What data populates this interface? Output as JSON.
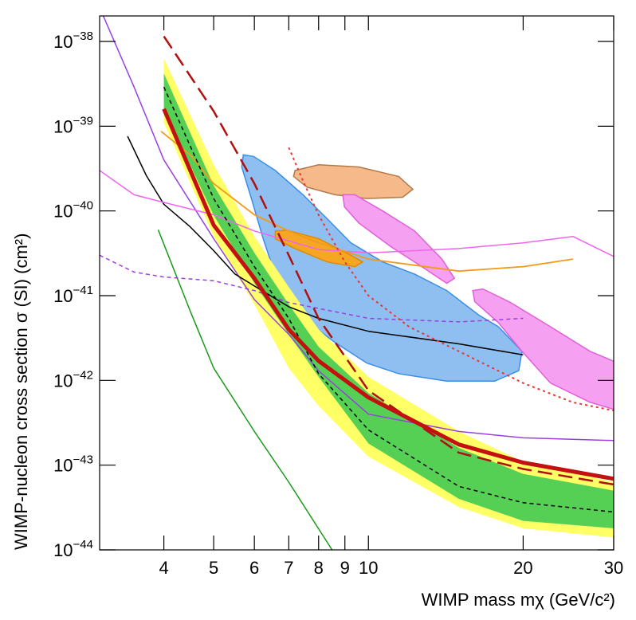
{
  "chart_data": {
    "type": "line",
    "x_label": "WIMP mass mχ (GeV/c²)",
    "y_label": "WIMP-nucleon cross section σ (SI) (cm²)",
    "log_x": true,
    "log_y": true,
    "xlim": [
      3,
      30
    ],
    "ylim": [
      1e-44,
      2e-38
    ],
    "xticks": [
      4,
      5,
      6,
      7,
      8,
      9,
      10,
      20,
      30
    ],
    "yticks": [
      {
        "value": 1e-44,
        "label": "10−44"
      },
      {
        "value": 1e-43,
        "label": "10−43"
      },
      {
        "value": 1e-42,
        "label": "10−42"
      },
      {
        "value": 1e-41,
        "label": "10−41"
      },
      {
        "value": 1e-40,
        "label": "10−40"
      },
      {
        "value": 1e-39,
        "label": "10−39"
      },
      {
        "value": 1e-38,
        "label": "10−38"
      }
    ],
    "regions": [
      {
        "color": "#8fbff0",
        "edge": "#3a8ee6",
        "x": [
          5.71,
          5.98,
          6.59,
          7.46,
          8.31,
          9.24,
          10.66,
          12.3,
          14.2,
          16.4,
          17.9,
          19.9,
          19.6,
          17.6,
          14.2,
          11.45,
          9.93,
          8.61,
          7.46,
          6.71,
          6.24,
          5.92,
          5.67
        ],
        "values": [
          4.6e-40,
          4.4e-40,
          3e-40,
          1.55e-40,
          8.1e-41,
          4.2e-41,
          2.5e-41,
          1.8e-41,
          1.15e-41,
          5.9e-42,
          4.3e-42,
          2.2e-42,
          1.3e-42,
          9.8e-43,
          9.8e-43,
          1.2e-42,
          1.6e-42,
          2.8e-42,
          5.4e-42,
          1.26e-41,
          4.7e-41,
          1.4e-40,
          3.3e-40
        ]
      },
      {
        "color": "#f5b98a",
        "edge": "#b07a4a",
        "x": [
          7.2,
          8.0,
          9.58,
          11.45,
          12.2,
          11.66,
          9.93,
          8.61,
          7.6,
          7.15
        ],
        "values": [
          3e-40,
          3.5e-40,
          3.3e-40,
          2.55e-40,
          1.8e-40,
          1.45e-40,
          1.4e-40,
          1.55e-40,
          1.9e-40,
          2.55e-40
        ]
      },
      {
        "color": "#f5a623",
        "edge": "#e08a00",
        "x": [
          6.59,
          6.95,
          8.0,
          9.24,
          9.75,
          9.41,
          8.31,
          7.2,
          6.59
        ],
        "values": [
          5.8e-41,
          5.9e-41,
          4.7e-41,
          3e-41,
          2.5e-41,
          2.2e-41,
          2.5e-41,
          3.6e-41,
          4.7e-41
        ]
      },
      {
        "color": "#f5a0f0",
        "edge": "#e060d8",
        "x": [
          8.92,
          9.41,
          10.66,
          12.3,
          13.9,
          14.7,
          14.2,
          12.7,
          11.05,
          9.58,
          8.98
        ],
        "values": [
          1.55e-40,
          1.55e-40,
          1e-40,
          5.8e-41,
          2.7e-41,
          1.6e-41,
          1.4e-41,
          2.2e-41,
          3.8e-41,
          7.2e-41,
          1.12e-40
        ]
      },
      {
        "color": "#f5a0f0",
        "edge": "#e060d8",
        "x": [
          15.96,
          16.7,
          18.9,
          22.6,
          27,
          30.6,
          30.6,
          27,
          22.6,
          19.9,
          17.9,
          16.1
        ],
        "values": [
          1.15e-41,
          1.2e-41,
          8.3e-42,
          4.3e-42,
          2.2e-42,
          1.6e-42,
          4.4e-43,
          5.5e-43,
          9.3e-43,
          2.2e-42,
          4.8e-42,
          8.5e-42
        ]
      }
    ],
    "bands": [
      {
        "color": "#ffff66",
        "x": [
          4,
          5,
          6,
          7,
          8,
          10,
          15,
          20,
          30
        ],
        "upper": [
          6.3e-39,
          3.5e-40,
          5e-41,
          1.26e-41,
          4e-42,
          1.1e-42,
          2.5e-43,
          1.1e-43,
          6.3e-44
        ],
        "lower": [
          1.1e-39,
          5e-41,
          7.9e-42,
          1.4e-42,
          5e-43,
          1.26e-43,
          3.2e-44,
          1.8e-44,
          1.4e-44
        ]
      },
      {
        "color": "#55d055",
        "x": [
          4,
          5,
          6,
          7,
          8,
          10,
          15,
          20,
          30
        ],
        "upper": [
          4.2e-39,
          2e-40,
          3.2e-41,
          7.9e-42,
          2.5e-42,
          7.1e-43,
          1.6e-43,
          7.9e-44,
          5e-44
        ],
        "lower": [
          1.6e-39,
          8.9e-41,
          1.4e-41,
          3.5e-42,
          1.1e-42,
          1.8e-43,
          4e-44,
          2.2e-44,
          1.8e-44
        ]
      }
    ],
    "series": [
      {
        "color": "#1a9a1a",
        "dash": "solid",
        "width": 1.5,
        "x": [
          3.9,
          4.5,
          5,
          6,
          7,
          8.5
        ],
        "values": [
          6e-41,
          6.6e-42,
          1.4e-42,
          2.5e-43,
          6.3e-44,
          1e-44
        ]
      },
      {
        "color": "#9a40e0",
        "dash": "solid",
        "width": 1.5,
        "x": [
          3.05,
          3.5,
          4,
          5,
          6,
          7,
          8,
          10,
          15,
          20,
          30
        ],
        "values": [
          2e-38,
          2.9e-39,
          4e-40,
          4.7e-41,
          9e-42,
          3.5e-42,
          1.3e-42,
          4e-43,
          2.5e-43,
          2.1e-43,
          1.95e-43
        ]
      },
      {
        "color": "#9a40e0",
        "dash": "dashed",
        "width": 1.5,
        "x": [
          3,
          3.5,
          4,
          5,
          6,
          7,
          10,
          15,
          20
        ],
        "values": [
          3e-41,
          1.9e-41,
          1.66e-41,
          1.5e-41,
          1.15e-41,
          8.3e-42,
          5.4e-42,
          4.9e-42,
          5.4e-42
        ]
      },
      {
        "color": "#000000",
        "dash": "solid",
        "width": 1.5,
        "x": [
          3.4,
          3.7,
          4,
          4.5,
          5,
          5.5,
          6,
          7,
          8,
          10,
          15,
          20
        ],
        "values": [
          7.6e-40,
          2.6e-40,
          1.2e-40,
          6.5e-41,
          3.4e-41,
          1.8e-41,
          1.3e-41,
          7.4e-42,
          5.4e-42,
          3.8e-42,
          2.7e-42,
          2e-42
        ]
      },
      {
        "color": "#ee66ee",
        "dash": "solid",
        "width": 1.5,
        "x": [
          3,
          3.5,
          4,
          5,
          6,
          8,
          10,
          15,
          20,
          25,
          30
        ],
        "values": [
          3e-40,
          1.55e-40,
          1.26e-40,
          9e-41,
          5.8e-41,
          3.5e-41,
          3.2e-41,
          3.6e-41,
          4.2e-41,
          5e-41,
          2.9e-41
        ]
      },
      {
        "color": "#f39a1e",
        "dash": "solid",
        "width": 1.8,
        "x": [
          3.95,
          4.5,
          5,
          6,
          7,
          8,
          10,
          15,
          20,
          25
        ],
        "values": [
          8.7e-40,
          4.6e-40,
          2.1e-40,
          9e-41,
          5.8e-41,
          4.2e-41,
          2.7e-41,
          1.95e-41,
          2.2e-41,
          2.7e-41
        ]
      },
      {
        "color": "#ee3333",
        "dash": "dotted",
        "width": 2,
        "x": [
          7,
          7.5,
          8,
          9,
          10,
          12,
          15,
          20,
          25,
          30
        ],
        "values": [
          5.6e-40,
          2.1e-40,
          9e-41,
          2.5e-41,
          1e-41,
          4.3e-42,
          2.2e-42,
          9.3e-43,
          5.5e-43,
          4.4e-43
        ]
      },
      {
        "color": "#000000",
        "dash": "dashed",
        "width": 1.5,
        "x": [
          4,
          5,
          6,
          7,
          8,
          10,
          15,
          20,
          30
        ],
        "values": [
          2.9e-39,
          1.4e-40,
          2.2e-41,
          5.4e-42,
          1.2e-42,
          2.6e-43,
          5.6e-44,
          3.6e-44,
          2.8e-44
        ]
      },
      {
        "color": "#b01010",
        "dash": "longdash",
        "width": 2.5,
        "x": [
          4,
          5,
          6,
          7,
          8,
          10,
          15,
          20,
          30
        ],
        "values": [
          1.15e-38,
          1.5e-39,
          2.1e-40,
          3e-41,
          5.4e-42,
          7.6e-43,
          1.4e-43,
          9e-44,
          5.9e-44
        ]
      },
      {
        "color": "#c41010",
        "dash": "solid",
        "width": 5,
        "x": [
          4,
          5,
          6,
          7,
          8,
          10,
          15,
          20,
          30
        ],
        "values": [
          1.6e-39,
          6.8e-41,
          1.6e-41,
          4e-42,
          1.7e-42,
          6.3e-43,
          1.75e-43,
          1.07e-43,
          6.9e-44
        ]
      }
    ]
  }
}
